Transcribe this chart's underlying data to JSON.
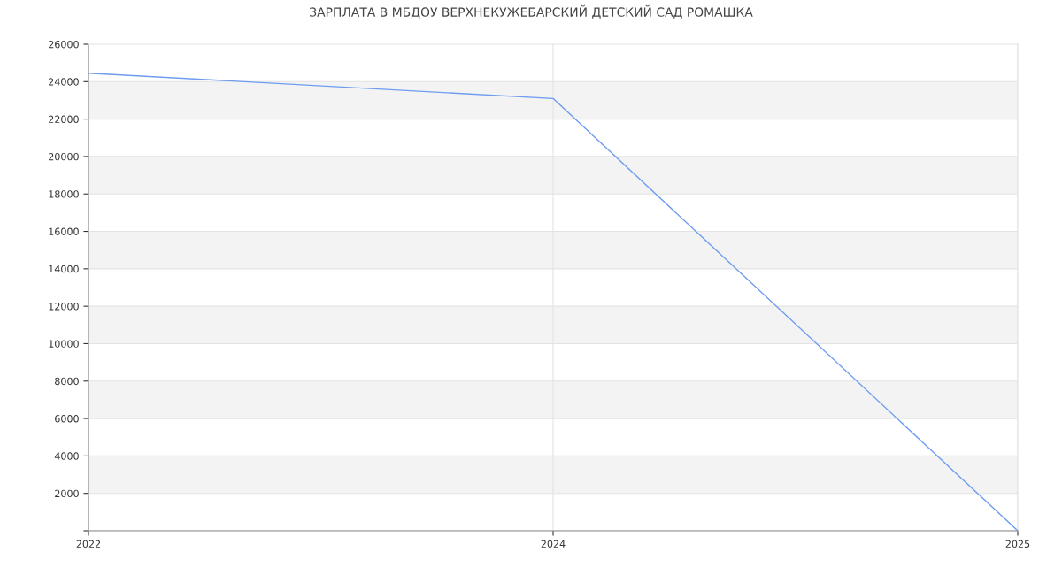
{
  "chart_data": {
    "type": "line",
    "title": "ЗАРПЛАТА В МБДОУ ВЕРХНЕКУЖЕБАРСКИЙ ДЕТСКИЙ САД РОМАШКА",
    "categories": [
      "2022",
      "2024",
      "2025"
    ],
    "series": [
      {
        "color": "#6e9cf0",
        "values": [
          24450,
          23100,
          0
        ]
      }
    ],
    "ylim": [
      0,
      26000
    ],
    "yticks": [
      {
        "value": 0,
        "label": null
      },
      2000,
      4000,
      6000,
      8000,
      10000,
      12000,
      14000,
      16000,
      18000,
      20000,
      22000,
      24000,
      26000
    ],
    "grid": true,
    "marker": "none",
    "line_style": "solid"
  }
}
